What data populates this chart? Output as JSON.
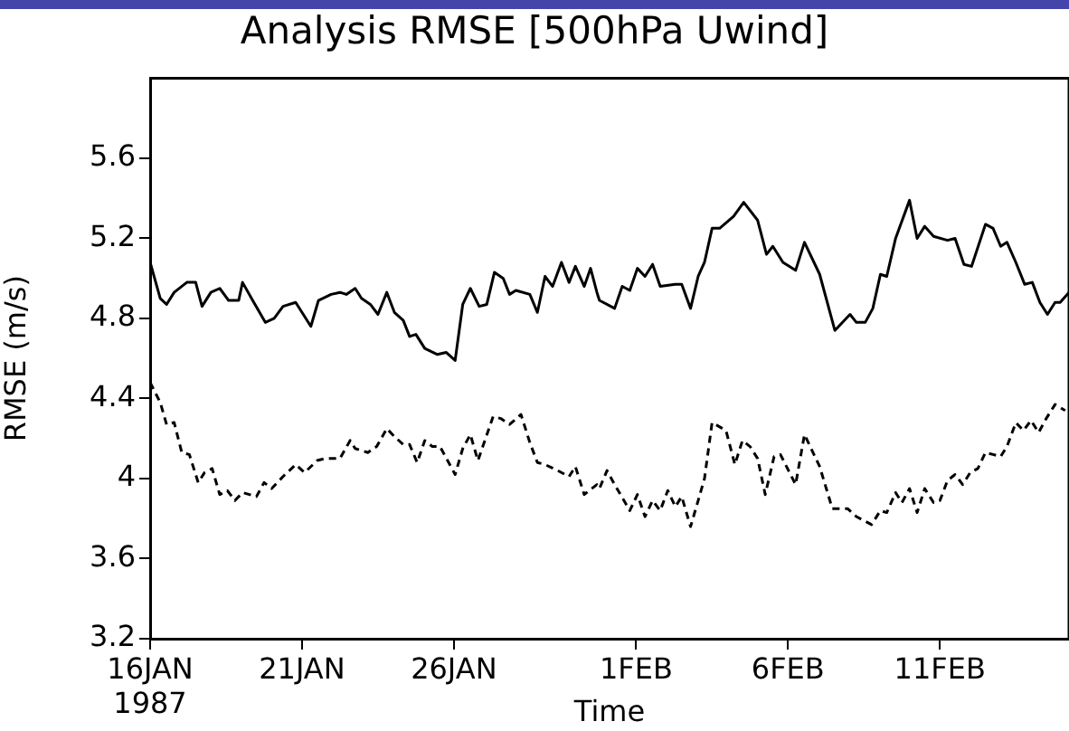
{
  "chart_data": {
    "type": "line",
    "title": "Analysis RMSE [500hPa Uwind]",
    "xlabel": "Time",
    "ylabel": "RMSE (m/s)",
    "xlim": [
      "1987-01-16T00:00",
      "1987-02-15T06:00"
    ],
    "xticks": [
      {
        "value": "1987-01-16",
        "label": "16JAN\n1987"
      },
      {
        "value": "1987-01-21",
        "label": "21JAN"
      },
      {
        "value": "1987-01-26",
        "label": "26JAN"
      },
      {
        "value": "1987-02-01",
        "label": "1FEB"
      },
      {
        "value": "1987-02-06",
        "label": "6FEB"
      },
      {
        "value": "1987-02-11",
        "label": "11FEB"
      }
    ],
    "ylim": [
      3.2,
      6.0
    ],
    "yticks": [
      3.2,
      3.6,
      4,
      4.4,
      4.8,
      5.2,
      5.6
    ],
    "grid": false,
    "legend": false,
    "marker": "none",
    "series": [
      {
        "color": "#000000",
        "line_style": "solid",
        "x": [
          "1987-01-16T00:00",
          "1987-01-16T08:00",
          "1987-01-16T13:00",
          "1987-01-16T19:00",
          "1987-01-17T05:00",
          "1987-01-17T12:00",
          "1987-01-17T17:00",
          "1987-01-18T00:00",
          "1987-01-18T07:00",
          "1987-01-18T14:00",
          "1987-01-18T22:00",
          "1987-01-19T01:00",
          "1987-01-19T09:00",
          "1987-01-19T19:00",
          "1987-01-20T02:00",
          "1987-01-20T09:00",
          "1987-01-20T19:00",
          "1987-01-21T07:00",
          "1987-01-21T13:00",
          "1987-01-21T23:00",
          "1987-01-22T06:00",
          "1987-01-22T11:00",
          "1987-01-22T18:00",
          "1987-01-22T23:00",
          "1987-01-23T06:00",
          "1987-01-23T12:00",
          "1987-01-23T19:00",
          "1987-01-24T01:00",
          "1987-01-24T08:00",
          "1987-01-24T13:00",
          "1987-01-24T18:00",
          "1987-01-25T01:00",
          "1987-01-25T11:00",
          "1987-01-25T18:00",
          "1987-01-26T01:00",
          "1987-01-26T07:00",
          "1987-01-26T13:00",
          "1987-01-26T20:00",
          "1987-01-27T02:00",
          "1987-01-27T08:00",
          "1987-01-27T15:00",
          "1987-01-27T20:00",
          "1987-01-28T01:00",
          "1987-01-28T12:00",
          "1987-01-28T18:00",
          "1987-01-29T00:00",
          "1987-01-29T06:00",
          "1987-01-29T13:00",
          "1987-01-29T19:00",
          "1987-01-30T00:00",
          "1987-01-30T07:00",
          "1987-01-30T12:00",
          "1987-01-30T17:00",
          "1987-01-30T19:00",
          "1987-01-31T07:00",
          "1987-01-31T13:00",
          "1987-01-31T19:00",
          "1987-02-01T01:00",
          "1987-02-01T07:00",
          "1987-02-01T13:00",
          "1987-02-01T19:00",
          "1987-02-02T07:00",
          "1987-02-02T12:00",
          "1987-02-02T19:00",
          "1987-02-03T01:00",
          "1987-02-03T06:00",
          "1987-02-03T12:00",
          "1987-02-03T18:00",
          "1987-02-04T05:00",
          "1987-02-04T13:00",
          "1987-02-05T00:00",
          "1987-02-05T07:00",
          "1987-02-05T12:00",
          "1987-02-05T20:00",
          "1987-02-06T06:00",
          "1987-02-06T13:00",
          "1987-02-07T01:00",
          "1987-02-07T13:00",
          "1987-02-08T01:00",
          "1987-02-08T06:00",
          "1987-02-08T13:00",
          "1987-02-08T19:00",
          "1987-02-09T01:00",
          "1987-02-09T06:00",
          "1987-02-09T13:00",
          "1987-02-10T00:00",
          "1987-02-10T06:00",
          "1987-02-10T12:00",
          "1987-02-10T19:00",
          "1987-02-11T06:00",
          "1987-02-11T12:00",
          "1987-02-11T19:00",
          "1987-02-12T01:00",
          "1987-02-12T12:00",
          "1987-02-12T18:00",
          "1987-02-13T00:00",
          "1987-02-13T05:00",
          "1987-02-13T12:00",
          "1987-02-13T19:00",
          "1987-02-14T01:00",
          "1987-02-14T07:00",
          "1987-02-14T13:00",
          "1987-02-14T19:00",
          "1987-02-14T23:00",
          "1987-02-15T06:00"
        ],
        "values": [
          5.08,
          4.9,
          4.87,
          4.93,
          4.98,
          4.98,
          4.86,
          4.93,
          4.95,
          4.89,
          4.89,
          4.98,
          4.89,
          4.78,
          4.8,
          4.86,
          4.88,
          4.76,
          4.89,
          4.92,
          4.93,
          4.92,
          4.95,
          4.9,
          4.87,
          4.82,
          4.93,
          4.83,
          4.79,
          4.71,
          4.72,
          4.65,
          4.62,
          4.63,
          4.59,
          4.87,
          4.95,
          4.86,
          4.87,
          5.03,
          5.0,
          4.92,
          4.94,
          4.92,
          4.83,
          5.01,
          4.96,
          5.08,
          4.98,
          5.06,
          4.96,
          5.05,
          4.93,
          4.89,
          4.85,
          4.96,
          4.94,
          5.05,
          5.01,
          5.07,
          4.96,
          4.97,
          4.97,
          4.85,
          5.01,
          5.08,
          5.25,
          5.25,
          5.31,
          5.38,
          5.29,
          5.12,
          5.16,
          5.08,
          5.04,
          5.18,
          5.02,
          4.74,
          4.82,
          4.78,
          4.78,
          4.85,
          5.02,
          5.01,
          5.2,
          5.39,
          5.2,
          5.26,
          5.21,
          5.19,
          5.2,
          5.07,
          5.06,
          5.27,
          5.25,
          5.16,
          5.18,
          5.08,
          4.97,
          4.98,
          4.88,
          4.82,
          4.88,
          4.88,
          4.93
        ]
      },
      {
        "color": "#000000",
        "line_style": "dashed",
        "x": [
          "1987-01-16T00:00",
          "1987-01-16T08:00",
          "1987-01-16T13:00",
          "1987-01-16T19:00",
          "1987-01-17T01:00",
          "1987-01-17T07:00",
          "1987-01-17T14:00",
          "1987-01-17T19:00",
          "1987-01-18T01:00",
          "1987-01-18T07:00",
          "1987-01-18T13:00",
          "1987-01-18T19:00",
          "1987-01-19T01:00",
          "1987-01-19T12:00",
          "1987-01-19T18:00",
          "1987-01-20T00:00",
          "1987-01-20T09:00",
          "1987-01-20T19:00",
          "1987-01-21T02:00",
          "1987-01-21T12:00",
          "1987-01-21T18:00",
          "1987-01-22T06:00",
          "1987-01-22T14:00",
          "1987-01-22T18:00",
          "1987-01-23T04:00",
          "1987-01-23T11:00",
          "1987-01-23T19:00",
          "1987-01-24T01:00",
          "1987-01-24T08:00",
          "1987-01-24T13:00",
          "1987-01-24T19:00",
          "1987-01-25T01:00",
          "1987-01-25T07:00",
          "1987-01-25T13:00",
          "1987-01-26T01:00",
          "1987-01-26T07:00",
          "1987-01-26T13:00",
          "1987-01-26T19:00",
          "1987-01-27T07:00",
          "1987-01-27T13:00",
          "1987-01-27T20:00",
          "1987-01-28T05:00",
          "1987-01-28T12:00",
          "1987-01-28T18:00",
          "1987-01-29T00:00",
          "1987-01-29T10:00",
          "1987-01-29T19:00",
          "1987-01-30T00:00",
          "1987-01-30T07:00",
          "1987-01-30T17:00",
          "1987-01-30T19:00",
          "1987-01-31T01:00",
          "1987-01-31T07:00",
          "1987-01-31T19:00",
          "1987-02-01T01:00",
          "1987-02-01T07:00",
          "1987-02-01T13:00",
          "1987-02-01T19:00",
          "1987-02-02T01:00",
          "1987-02-02T07:00",
          "1987-02-02T12:00",
          "1987-02-02T19:00",
          "1987-02-03T01:00",
          "1987-02-03T06:00",
          "1987-02-03T12:00",
          "1987-02-03T23:00",
          "1987-02-04T06:00",
          "1987-02-04T12:00",
          "1987-02-04T18:00",
          "1987-02-05T00:00",
          "1987-02-05T06:00",
          "1987-02-05T13:00",
          "1987-02-05T18:00",
          "1987-02-06T06:00",
          "1987-02-06T13:00",
          "1987-02-07T01:00",
          "1987-02-07T11:00",
          "1987-02-07T23:00",
          "1987-02-08T06:00",
          "1987-02-08T18:00",
          "1987-02-09T01:00",
          "1987-02-09T06:00",
          "1987-02-09T13:00",
          "1987-02-09T18:00",
          "1987-02-10T00:00",
          "1987-02-10T06:00",
          "1987-02-10T12:00",
          "1987-02-10T19:00",
          "1987-02-11T00:00",
          "1987-02-11T06:00",
          "1987-02-11T12:00",
          "1987-02-11T18:00",
          "1987-02-12T00:00",
          "1987-02-12T06:00",
          "1987-02-12T12:00",
          "1987-02-12T18:00",
          "1987-02-13T00:00",
          "1987-02-13T05:00",
          "1987-02-13T12:00",
          "1987-02-13T18:00",
          "1987-02-14T00:00",
          "1987-02-14T06:00",
          "1987-02-14T12:00",
          "1987-02-14T19:00",
          "1987-02-15T03:00"
        ],
        "values": [
          4.48,
          4.38,
          4.27,
          4.28,
          4.13,
          4.12,
          3.98,
          4.03,
          4.05,
          3.92,
          3.94,
          3.89,
          3.93,
          3.91,
          3.98,
          3.95,
          4.01,
          4.07,
          4.03,
          4.09,
          4.1,
          4.1,
          4.19,
          4.15,
          4.13,
          4.16,
          4.25,
          4.21,
          4.17,
          4.17,
          4.08,
          4.19,
          4.16,
          4.16,
          4.02,
          4.15,
          4.22,
          4.09,
          4.31,
          4.3,
          4.27,
          4.32,
          4.18,
          4.08,
          4.07,
          4.04,
          4.01,
          4.06,
          3.92,
          3.97,
          3.95,
          4.04,
          3.97,
          3.84,
          3.92,
          3.81,
          3.89,
          3.84,
          3.94,
          3.86,
          3.91,
          3.76,
          3.89,
          4.0,
          4.28,
          4.24,
          4.07,
          4.19,
          4.16,
          4.1,
          3.92,
          4.11,
          4.12,
          3.97,
          4.22,
          4.06,
          3.85,
          3.85,
          3.81,
          3.77,
          3.84,
          3.83,
          3.93,
          3.88,
          3.95,
          3.83,
          3.95,
          3.88,
          3.89,
          3.99,
          4.02,
          3.97,
          4.03,
          4.05,
          4.13,
          4.12,
          4.11,
          4.16,
          4.28,
          4.24,
          4.29,
          4.23,
          4.3,
          4.37,
          4.34
        ]
      }
    ]
  }
}
